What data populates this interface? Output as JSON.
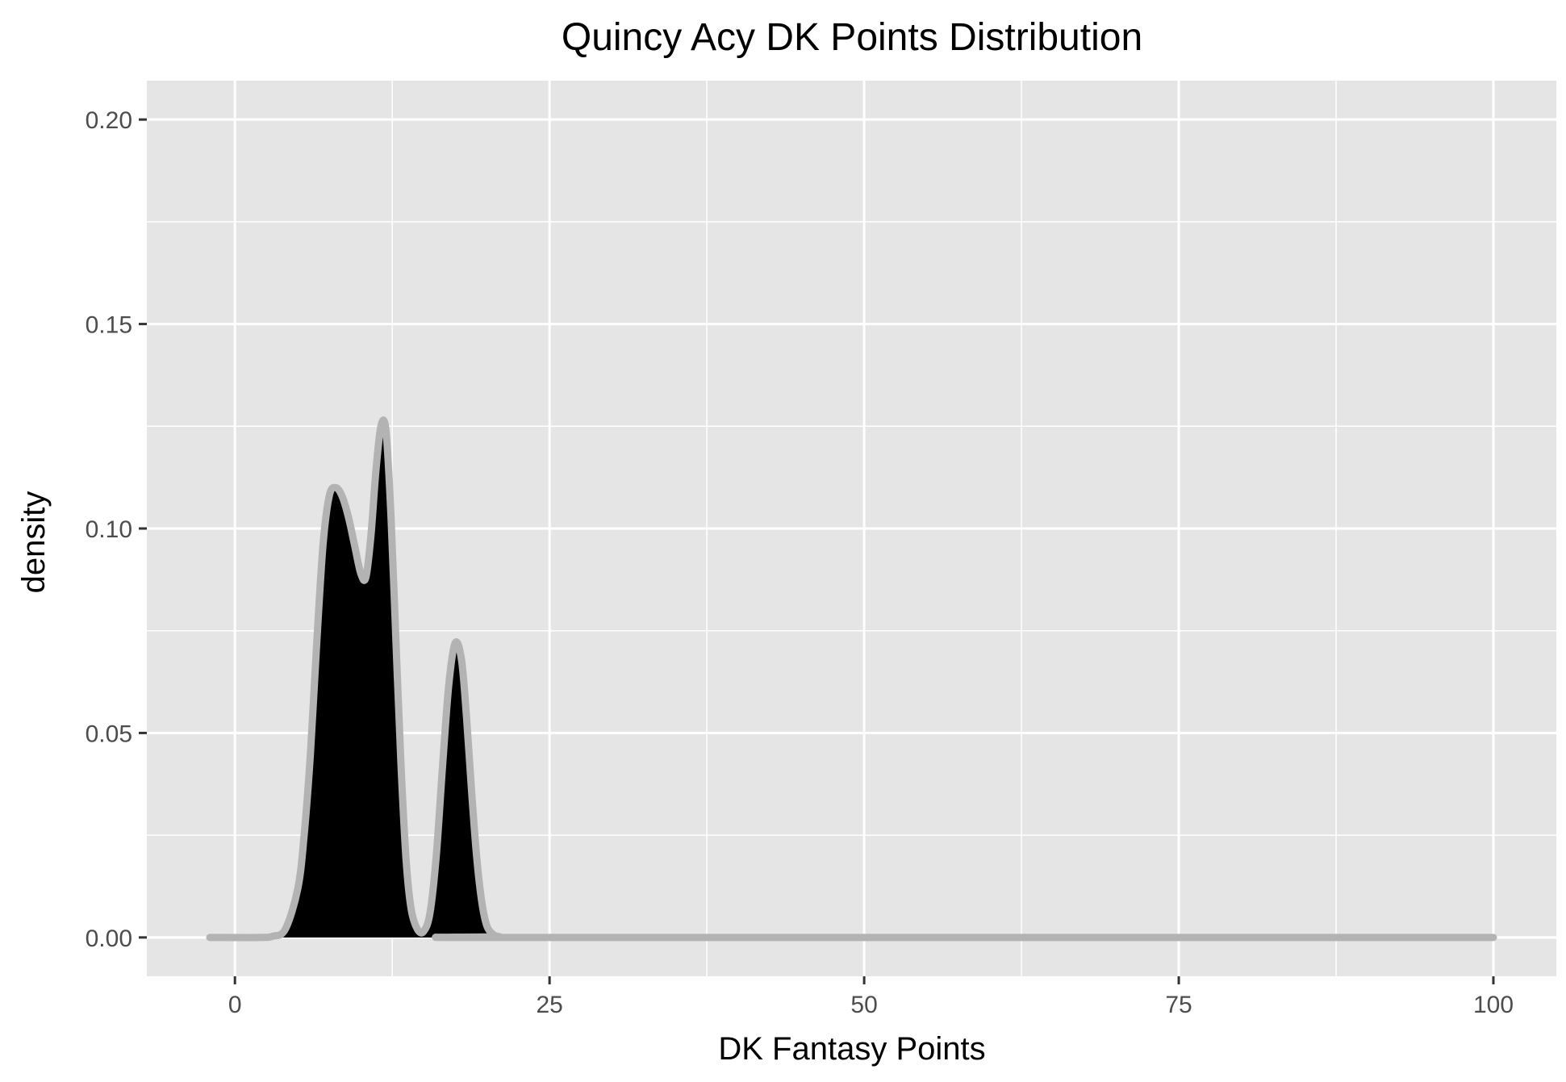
{
  "chart_data": {
    "type": "area",
    "title": "Quincy Acy DK Points Distribution",
    "xlabel": "DK Fantasy Points",
    "ylabel": "density",
    "xlim": [
      -7,
      105
    ],
    "ylim": [
      -0.0095,
      0.2095
    ],
    "x_ticks": [
      0,
      25,
      50,
      75,
      100
    ],
    "x_tick_labels": [
      "0",
      "25",
      "50",
      "75",
      "100"
    ],
    "y_ticks": [
      0.0,
      0.05,
      0.1,
      0.15,
      0.2
    ],
    "y_tick_labels": [
      "0.00",
      "0.05",
      "0.10",
      "0.15",
      "0.20"
    ],
    "grid": true,
    "legend": "none",
    "series": [
      {
        "fill_color": "#000000",
        "line_color": "#b3b3b3",
        "x": [
          -2,
          2,
          3,
          4,
          5,
          5.5,
          6,
          6.5,
          7,
          7.5,
          8,
          8.5,
          9,
          9.5,
          10,
          10.4,
          10.8,
          11.2,
          11.6,
          12.0,
          12.4,
          12.8,
          13.2,
          13.6,
          14,
          14.5,
          15,
          15.5,
          16,
          16.5,
          17,
          17.5,
          18,
          18.4,
          18.8,
          19.2,
          19.6,
          20,
          20.5,
          21,
          22,
          100
        ],
        "y": [
          0,
          0,
          0.0003,
          0.002,
          0.012,
          0.025,
          0.045,
          0.072,
          0.096,
          0.108,
          0.11,
          0.108,
          0.103,
          0.096,
          0.089,
          0.088,
          0.098,
          0.114,
          0.125,
          0.124,
          0.103,
          0.072,
          0.042,
          0.019,
          0.007,
          0.002,
          0.0015,
          0.006,
          0.02,
          0.042,
          0.062,
          0.072,
          0.068,
          0.054,
          0.036,
          0.02,
          0.009,
          0.003,
          0.0008,
          0.0002,
          0,
          0
        ]
      }
    ]
  }
}
